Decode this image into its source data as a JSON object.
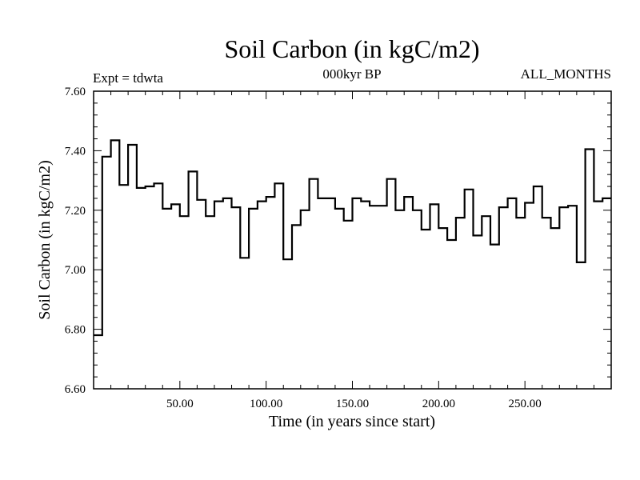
{
  "chart_data": {
    "type": "line",
    "step": true,
    "title": "Soil Carbon (in kgC/m2)",
    "subtitle": "000kyr BP",
    "left_label": "Expt = tdwta",
    "right_label": "ALL_MONTHS",
    "xlabel": "Time (in years since start)",
    "ylabel": "Soil Carbon (in kgC/m2)",
    "xlim": [
      0,
      300
    ],
    "ylim": [
      6.6,
      7.6
    ],
    "xticks": [
      50,
      100,
      150,
      200,
      250
    ],
    "xtick_labels": [
      "50.00",
      "100.00",
      "150.00",
      "200.00",
      "250.00"
    ],
    "yticks": [
      6.6,
      6.8,
      7.0,
      7.2,
      7.4,
      7.6
    ],
    "ytick_labels": [
      "6.60",
      "6.80",
      "7.00",
      "7.20",
      "7.40",
      "7.60"
    ],
    "x": [
      0,
      5,
      10,
      15,
      20,
      25,
      30,
      35,
      40,
      45,
      50,
      55,
      60,
      65,
      70,
      75,
      80,
      85,
      90,
      95,
      100,
      105,
      110,
      115,
      120,
      125,
      130,
      135,
      140,
      145,
      150,
      155,
      160,
      165,
      170,
      175,
      180,
      185,
      190,
      195,
      200,
      205,
      210,
      215,
      220,
      225,
      230,
      235,
      240,
      245,
      250,
      255,
      260,
      265,
      270,
      275,
      280,
      285,
      290,
      295
    ],
    "values": [
      6.78,
      7.38,
      7.435,
      7.285,
      7.42,
      7.275,
      7.28,
      7.29,
      7.205,
      7.22,
      7.18,
      7.33,
      7.235,
      7.18,
      7.23,
      7.24,
      7.21,
      7.04,
      7.205,
      7.23,
      7.245,
      7.29,
      7.035,
      7.15,
      7.2,
      7.305,
      7.24,
      7.24,
      7.205,
      7.165,
      7.24,
      7.23,
      7.215,
      7.215,
      7.305,
      7.2,
      7.245,
      7.2,
      7.135,
      7.22,
      7.14,
      7.1,
      7.175,
      7.27,
      7.115,
      7.18,
      7.085,
      7.21,
      7.24,
      7.175,
      7.225,
      7.28,
      7.175,
      7.14,
      7.21,
      7.215,
      7.025,
      7.405,
      7.23,
      7.24
    ]
  }
}
